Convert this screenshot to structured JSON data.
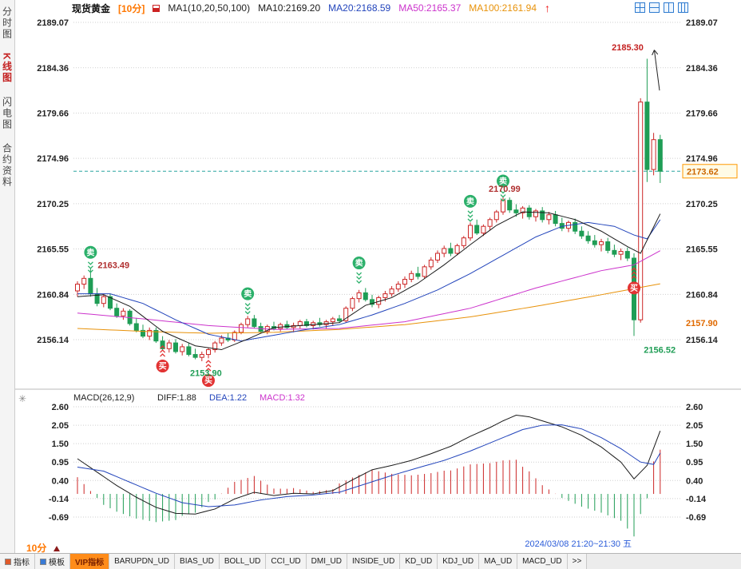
{
  "header": {
    "symbol": "现货黄金",
    "period": "[10分]",
    "ma_set_label": "MA1(10,20,50,100)",
    "ma_values": [
      {
        "label": "MA10:2169.20",
        "color": "#1a1a1a"
      },
      {
        "label": "MA20:2168.59",
        "color": "#2244bb"
      },
      {
        "label": "MA50:2165.37",
        "color": "#cc33cc"
      },
      {
        "label": "MA100:2161.94",
        "color": "#e8920a"
      }
    ],
    "alert_arrow": "↑",
    "layout_icons": [
      "grid-2x2",
      "split-horizontal",
      "split-vertical",
      "columns-3"
    ]
  },
  "sidebar": {
    "items": [
      {
        "label": "分时图",
        "active": false
      },
      {
        "label": "K线图",
        "active": true
      },
      {
        "label": "闪电图",
        "active": false
      },
      {
        "label": "合约资料",
        "active": false
      }
    ]
  },
  "footer": {
    "timeframe": "10分",
    "datetime": "2024/03/08 21:20~21:30 五",
    "tabs": [
      {
        "label": "指标",
        "icon": "chart",
        "active": false
      },
      {
        "label": "模板",
        "icon": "template",
        "active": false
      },
      {
        "label": "VIP指标",
        "active": true
      },
      {
        "label": "BARUPDN_UD"
      },
      {
        "label": "BIAS_UD"
      },
      {
        "label": "BOLL_UD"
      },
      {
        "label": "CCI_UD"
      },
      {
        "label": "DMI_UD"
      },
      {
        "label": "INSIDE_UD"
      },
      {
        "label": "KD_UD"
      },
      {
        "label": "KDJ_UD"
      },
      {
        "label": "MA_UD"
      },
      {
        "label": "MACD_UD"
      },
      {
        "label": ">>",
        "more": true
      }
    ]
  },
  "chart_data": {
    "type": "candlestick+macd",
    "title": "现货黄金 10分钟K线",
    "price_axis": {
      "labels": [
        2189.07,
        2184.36,
        2179.66,
        2174.96,
        2170.25,
        2165.55,
        2160.84,
        2156.14
      ],
      "max": 2189.07,
      "min": 2156.14
    },
    "macd_axis": {
      "labels": [
        2.6,
        2.05,
        1.5,
        0.95,
        0.4,
        -0.14,
        -0.69
      ],
      "max": 2.6,
      "min": -0.69
    },
    "current_price": 2173.62,
    "session_low_label": 2157.9,
    "signal_labels": {
      "sell": "卖",
      "buy": "买"
    },
    "colors": {
      "up": "#cc2626",
      "down": "#1f9d55",
      "grid": "#cfcfcf",
      "axis_text": "#222222",
      "current_line": "#2aa5a0",
      "current_box": "#ff9900",
      "current_text": "#cc6600"
    },
    "candles": [
      [
        2161.2,
        2162.2,
        2160.6,
        2161.9
      ],
      [
        2161.9,
        2162.8,
        2161.4,
        2162.5
      ],
      [
        2162.5,
        2163.49,
        2160.6,
        2160.9
      ],
      [
        2160.9,
        2161.5,
        2159.6,
        2159.9
      ],
      [
        2159.9,
        2160.9,
        2159.5,
        2160.6
      ],
      [
        2160.6,
        2160.9,
        2159.2,
        2159.4
      ],
      [
        2159.4,
        2159.9,
        2158.4,
        2158.6
      ],
      [
        2158.6,
        2159.4,
        2158.2,
        2159.1
      ],
      [
        2159.1,
        2159.3,
        2157.6,
        2157.8
      ],
      [
        2157.8,
        2158.4,
        2156.9,
        2157.1
      ],
      [
        2157.1,
        2157.7,
        2156.3,
        2156.5
      ],
      [
        2156.5,
        2157.4,
        2156.1,
        2157.1
      ],
      [
        2157.1,
        2157.4,
        2155.8,
        2156.0
      ],
      [
        2156.0,
        2156.5,
        2155.0,
        2155.2
      ],
      [
        2155.2,
        2156.1,
        2154.8,
        2155.8
      ],
      [
        2155.8,
        2156.2,
        2154.7,
        2154.9
      ],
      [
        2154.9,
        2155.7,
        2154.5,
        2155.4
      ],
      [
        2155.4,
        2155.8,
        2154.4,
        2154.6
      ],
      [
        2154.6,
        2155.2,
        2154.1,
        2154.3
      ],
      [
        2154.3,
        2154.9,
        2153.9,
        2154.6
      ],
      [
        2154.6,
        2155.3,
        2154.2,
        2155.1
      ],
      [
        2155.1,
        2156.0,
        2154.8,
        2155.8
      ],
      [
        2155.8,
        2156.6,
        2155.5,
        2156.3
      ],
      [
        2156.3,
        2156.8,
        2155.9,
        2156.1
      ],
      [
        2156.1,
        2157.1,
        2155.9,
        2156.9
      ],
      [
        2156.9,
        2157.9,
        2156.7,
        2157.7
      ],
      [
        2157.7,
        2158.6,
        2157.4,
        2158.3
      ],
      [
        2158.3,
        2158.7,
        2157.3,
        2157.5
      ],
      [
        2157.5,
        2157.9,
        2156.8,
        2157.0
      ],
      [
        2157.0,
        2157.7,
        2156.7,
        2157.5
      ],
      [
        2157.5,
        2158.0,
        2157.1,
        2157.3
      ],
      [
        2157.3,
        2157.9,
        2157.0,
        2157.7
      ],
      [
        2157.7,
        2158.1,
        2157.2,
        2157.4
      ],
      [
        2157.4,
        2157.9,
        2156.9,
        2157.6
      ],
      [
        2157.6,
        2158.2,
        2157.3,
        2158.0
      ],
      [
        2158.0,
        2158.3,
        2157.4,
        2157.6
      ],
      [
        2157.6,
        2158.1,
        2157.2,
        2157.9
      ],
      [
        2157.9,
        2158.4,
        2157.5,
        2157.7
      ],
      [
        2157.7,
        2158.2,
        2157.3,
        2158.0
      ],
      [
        2158.0,
        2158.5,
        2157.6,
        2158.3
      ],
      [
        2158.3,
        2158.7,
        2157.9,
        2158.1
      ],
      [
        2158.1,
        2159.6,
        2157.9,
        2159.4
      ],
      [
        2159.4,
        2160.6,
        2159.1,
        2160.4
      ],
      [
        2160.4,
        2161.3,
        2160.0,
        2161.0
      ],
      [
        2161.0,
        2161.5,
        2160.1,
        2160.3
      ],
      [
        2160.3,
        2160.8,
        2159.5,
        2159.8
      ],
      [
        2159.8,
        2160.7,
        2159.4,
        2160.5
      ],
      [
        2160.5,
        2161.2,
        2160.1,
        2160.9
      ],
      [
        2160.9,
        2161.7,
        2160.6,
        2161.4
      ],
      [
        2161.4,
        2162.2,
        2161.1,
        2161.9
      ],
      [
        2161.9,
        2162.7,
        2161.5,
        2162.4
      ],
      [
        2162.4,
        2163.3,
        2162.1,
        2163.0
      ],
      [
        2163.0,
        2163.7,
        2162.4,
        2162.7
      ],
      [
        2162.7,
        2163.9,
        2162.5,
        2163.7
      ],
      [
        2163.7,
        2164.7,
        2163.4,
        2164.4
      ],
      [
        2164.4,
        2165.4,
        2164.1,
        2165.1
      ],
      [
        2165.1,
        2165.9,
        2164.7,
        2165.6
      ],
      [
        2165.6,
        2166.2,
        2164.8,
        2165.1
      ],
      [
        2165.1,
        2166.1,
        2164.9,
        2165.9
      ],
      [
        2165.9,
        2166.9,
        2165.6,
        2166.7
      ],
      [
        2166.7,
        2168.3,
        2166.4,
        2168.0
      ],
      [
        2168.0,
        2168.6,
        2167.0,
        2167.2
      ],
      [
        2167.2,
        2168.1,
        2166.9,
        2167.9
      ],
      [
        2167.9,
        2168.8,
        2167.5,
        2168.6
      ],
      [
        2168.6,
        2169.6,
        2168.3,
        2169.4
      ],
      [
        2169.4,
        2170.99,
        2169.1,
        2170.6
      ],
      [
        2170.6,
        2170.9,
        2169.3,
        2169.6
      ],
      [
        2169.6,
        2170.2,
        2168.9,
        2169.3
      ],
      [
        2169.3,
        2170.0,
        2168.7,
        2169.8
      ],
      [
        2169.8,
        2170.1,
        2168.6,
        2168.9
      ],
      [
        2168.9,
        2169.7,
        2168.4,
        2169.5
      ],
      [
        2169.5,
        2169.9,
        2168.3,
        2168.6
      ],
      [
        2168.6,
        2169.4,
        2168.1,
        2169.1
      ],
      [
        2169.1,
        2169.5,
        2167.9,
        2168.2
      ],
      [
        2168.2,
        2168.8,
        2167.4,
        2167.7
      ],
      [
        2167.7,
        2168.5,
        2167.3,
        2168.3
      ],
      [
        2168.3,
        2168.7,
        2167.1,
        2167.4
      ],
      [
        2167.4,
        2167.9,
        2166.6,
        2166.9
      ],
      [
        2166.9,
        2167.4,
        2166.1,
        2166.4
      ],
      [
        2166.4,
        2167.0,
        2165.7,
        2166.0
      ],
      [
        2166.0,
        2166.6,
        2165.3,
        2166.3
      ],
      [
        2166.3,
        2166.7,
        2165.1,
        2165.4
      ],
      [
        2165.4,
        2166.0,
        2164.7,
        2165.0
      ],
      [
        2165.0,
        2165.6,
        2164.4,
        2165.3
      ],
      [
        2165.3,
        2165.7,
        2164.3,
        2164.6
      ],
      [
        2164.6,
        2165.1,
        2156.52,
        2158.2
      ],
      [
        2158.2,
        2181.2,
        2157.9,
        2180.8
      ],
      [
        2180.8,
        2185.3,
        2172.5,
        2173.8
      ],
      [
        2173.8,
        2177.6,
        2173.2,
        2176.9
      ],
      [
        2176.9,
        2177.4,
        2172.4,
        2173.62
      ]
    ],
    "ma_lines": [
      {
        "name": "MA10",
        "color": "#1a1a1a",
        "points": [
          [
            0,
            2160.6
          ],
          [
            4,
            2160.8
          ],
          [
            8,
            2159.6
          ],
          [
            13,
            2157.0
          ],
          [
            18,
            2155.5
          ],
          [
            22,
            2155.1
          ],
          [
            26,
            2156.2
          ],
          [
            30,
            2157.4
          ],
          [
            36,
            2157.7
          ],
          [
            40,
            2157.9
          ],
          [
            44,
            2159.7
          ],
          [
            48,
            2160.5
          ],
          [
            52,
            2162.0
          ],
          [
            56,
            2163.9
          ],
          [
            60,
            2166.0
          ],
          [
            64,
            2168.0
          ],
          [
            68,
            2169.4
          ],
          [
            72,
            2169.3
          ],
          [
            76,
            2168.6
          ],
          [
            80,
            2167.4
          ],
          [
            84,
            2165.8
          ],
          [
            86,
            2165.1
          ],
          [
            89,
            2169.2
          ]
        ]
      },
      {
        "name": "MA20",
        "color": "#2244bb",
        "points": [
          [
            0,
            2160.9
          ],
          [
            5,
            2160.9
          ],
          [
            10,
            2159.9
          ],
          [
            15,
            2158.2
          ],
          [
            20,
            2156.7
          ],
          [
            25,
            2156.0
          ],
          [
            30,
            2156.6
          ],
          [
            35,
            2157.2
          ],
          [
            40,
            2157.7
          ],
          [
            45,
            2158.7
          ],
          [
            50,
            2159.9
          ],
          [
            55,
            2161.3
          ],
          [
            60,
            2163.0
          ],
          [
            65,
            2164.9
          ],
          [
            70,
            2166.8
          ],
          [
            74,
            2167.9
          ],
          [
            78,
            2168.3
          ],
          [
            82,
            2167.9
          ],
          [
            85,
            2167.0
          ],
          [
            87,
            2166.6
          ],
          [
            89,
            2168.59
          ]
        ]
      },
      {
        "name": "MA50",
        "color": "#cc33cc",
        "points": [
          [
            0,
            2158.9
          ],
          [
            10,
            2158.3
          ],
          [
            20,
            2157.6
          ],
          [
            30,
            2157.2
          ],
          [
            40,
            2157.3
          ],
          [
            50,
            2158.0
          ],
          [
            60,
            2159.4
          ],
          [
            70,
            2161.5
          ],
          [
            80,
            2163.3
          ],
          [
            85,
            2163.9
          ],
          [
            89,
            2165.37
          ]
        ]
      },
      {
        "name": "MA100",
        "color": "#e8920a",
        "points": [
          [
            0,
            2157.3
          ],
          [
            10,
            2157.0
          ],
          [
            20,
            2156.8
          ],
          [
            30,
            2156.9
          ],
          [
            40,
            2157.2
          ],
          [
            50,
            2157.7
          ],
          [
            60,
            2158.5
          ],
          [
            70,
            2159.6
          ],
          [
            80,
            2160.8
          ],
          [
            89,
            2161.94
          ]
        ]
      }
    ],
    "macd": {
      "params": "MACD(26,12,9)",
      "diff": 1.88,
      "dea": 1.22,
      "macd": 1.32,
      "diff_color": "#1a1a1a",
      "dea_color": "#2244bb",
      "macd_color": "#cc33cc",
      "hist_up_color": "#cc2626",
      "hist_down_color": "#1f9d55",
      "diff_points": [
        [
          0,
          1.05
        ],
        [
          3,
          0.65
        ],
        [
          6,
          0.25
        ],
        [
          9,
          -0.1
        ],
        [
          12,
          -0.4
        ],
        [
          15,
          -0.58
        ],
        [
          18,
          -0.6
        ],
        [
          21,
          -0.45
        ],
        [
          24,
          -0.15
        ],
        [
          27,
          0.05
        ],
        [
          30,
          -0.05
        ],
        [
          33,
          0.02
        ],
        [
          36,
          0.0
        ],
        [
          39,
          0.1
        ],
        [
          42,
          0.42
        ],
        [
          45,
          0.72
        ],
        [
          48,
          0.85
        ],
        [
          51,
          1.0
        ],
        [
          54,
          1.2
        ],
        [
          57,
          1.42
        ],
        [
          60,
          1.72
        ],
        [
          63,
          1.98
        ],
        [
          65,
          2.18
        ],
        [
          67,
          2.35
        ],
        [
          69,
          2.3
        ],
        [
          71,
          2.18
        ],
        [
          74,
          2.0
        ],
        [
          77,
          1.75
        ],
        [
          80,
          1.4
        ],
        [
          83,
          0.95
        ],
        [
          85,
          0.45
        ],
        [
          87,
          0.85
        ],
        [
          89,
          1.88
        ]
      ],
      "dea_points": [
        [
          0,
          0.8
        ],
        [
          4,
          0.68
        ],
        [
          8,
          0.35
        ],
        [
          12,
          0.02
        ],
        [
          16,
          -0.26
        ],
        [
          20,
          -0.38
        ],
        [
          24,
          -0.33
        ],
        [
          28,
          -0.18
        ],
        [
          32,
          -0.08
        ],
        [
          36,
          -0.03
        ],
        [
          40,
          0.05
        ],
        [
          44,
          0.3
        ],
        [
          48,
          0.55
        ],
        [
          52,
          0.78
        ],
        [
          56,
          1.0
        ],
        [
          60,
          1.28
        ],
        [
          64,
          1.6
        ],
        [
          68,
          1.92
        ],
        [
          71,
          2.05
        ],
        [
          74,
          2.06
        ],
        [
          77,
          1.94
        ],
        [
          80,
          1.68
        ],
        [
          83,
          1.35
        ],
        [
          86,
          0.95
        ],
        [
          88,
          0.88
        ],
        [
          89,
          1.22
        ]
      ]
    },
    "signals": [
      {
        "i": 2,
        "type": "sell",
        "price": 2165.2
      },
      {
        "i": 13,
        "type": "buy",
        "price": 2153.4
      },
      {
        "i": 20,
        "type": "buy",
        "price": 2151.9
      },
      {
        "i": 26,
        "type": "sell",
        "price": 2160.9
      },
      {
        "i": 43,
        "type": "sell",
        "price": 2164.1
      },
      {
        "i": 60,
        "type": "sell",
        "price": 2170.5
      },
      {
        "i": 65,
        "type": "sell",
        "price": 2172.6
      },
      {
        "i": 85,
        "type": "buy",
        "price": 2161.5
      }
    ],
    "annotations": [
      {
        "text": "2163.49",
        "i": 3.1,
        "price": 2163.9,
        "color": "#b03030"
      },
      {
        "text": "2153.90",
        "i": 17.2,
        "price": 2152.7,
        "color": "#1f9d55"
      },
      {
        "text": "2170.99",
        "i": 62.8,
        "price": 2171.8,
        "color": "#b03030"
      },
      {
        "text": "2185.30",
        "i": 81.6,
        "price": 2186.5,
        "color": "#c42020",
        "bold": true
      },
      {
        "text": "2156.52",
        "i": 86.5,
        "price": 2155.1,
        "color": "#1f9d55"
      }
    ],
    "spike_arrow": {
      "from_i": 88.9,
      "from_price": 2182.0,
      "to_i": 88.1,
      "to_price": 2186.2
    }
  }
}
